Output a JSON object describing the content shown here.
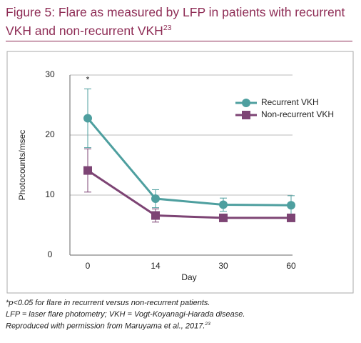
{
  "chart_data": {
    "type": "line",
    "title": "Figure 5: Flare as measured by LFP in patients with recurrent VKH and non-recurrent VKH",
    "title_ref": "23",
    "x_label": "Day",
    "y_label": "Photocounts/msec",
    "categories": [
      "0",
      "14",
      "30",
      "60"
    ],
    "series": [
      {
        "name": "Recurrent VKH",
        "color": "#4e9f9f",
        "marker": "circle",
        "values": [
          22.8,
          9.4,
          8.4,
          8.3
        ],
        "errors": [
          4.9,
          1.5,
          1.1,
          1.6
        ]
      },
      {
        "name": "Non-recurrent VKH",
        "color": "#7d4474",
        "marker": "square",
        "values": [
          14.1,
          6.6,
          6.2,
          6.2
        ],
        "errors": [
          3.6,
          1.1,
          0.6,
          0.6
        ]
      }
    ],
    "annotation": "*",
    "ylim": [
      0,
      30
    ],
    "yticks": [
      0,
      10,
      20,
      30
    ],
    "grid": true,
    "legend": "upper-right"
  },
  "footnotes": [
    "*p<0.05 for flare in recurrent versus non-recurrent patients.",
    "LFP = laser flare photometry; VKH = Vogt-Koyanagi-Harada disease.",
    "Reproduced with permission from Maruyama et al., 2017."
  ],
  "footnote_ref": "23"
}
